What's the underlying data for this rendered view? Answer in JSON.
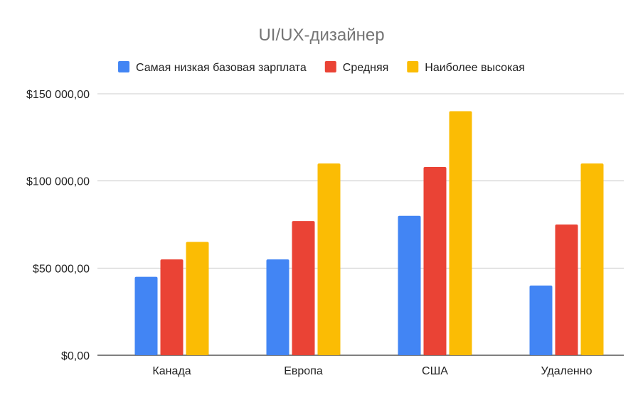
{
  "chart_data": {
    "type": "bar",
    "title": "UI/UX-дизайнер",
    "categories": [
      "Канада",
      "Европа",
      "США",
      "Удаленно"
    ],
    "series": [
      {
        "name": "Самая низкая базовая зарплата",
        "color": "#4285F4",
        "values": [
          45000,
          55000,
          80000,
          40000
        ]
      },
      {
        "name": "Средняя",
        "color": "#EA4335",
        "values": [
          55000,
          77000,
          108000,
          75000
        ]
      },
      {
        "name": "Наиболее высокая",
        "color": "#FBBC04",
        "values": [
          65000,
          110000,
          140000,
          110000
        ]
      }
    ],
    "ylim": [
      0,
      150000
    ],
    "yticks": [
      0,
      50000,
      100000,
      150000
    ],
    "ytick_labels": [
      "$0,00",
      "$50 000,00",
      "$100 000,00",
      "$150 000,00"
    ],
    "xlabel": "",
    "ylabel": "",
    "grid": true,
    "legend_position": "top"
  }
}
